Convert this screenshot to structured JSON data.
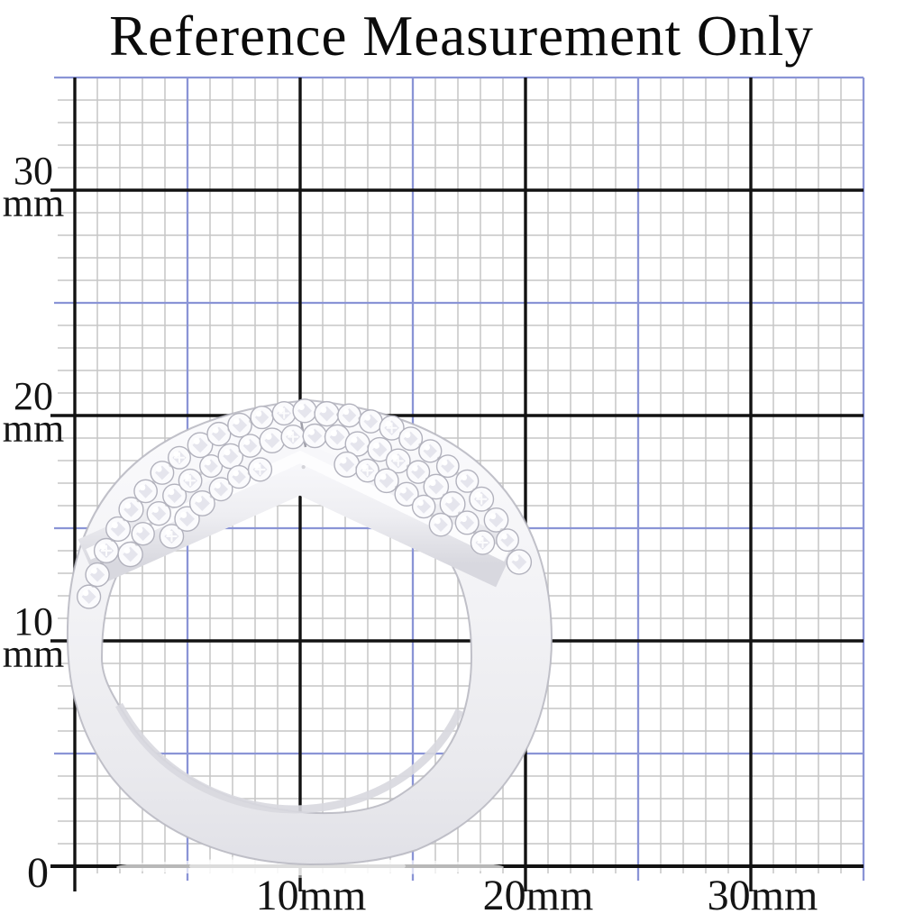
{
  "title": "Reference Measurement Only",
  "ruler": {
    "unit": "mm",
    "minor_step_mm": 1,
    "medium_step_mm": 5,
    "major_step_mm": 10,
    "visible_range_mm": {
      "x": 35,
      "y": 35
    },
    "x_axis_labels": [
      "10mm",
      "20mm",
      "30mm"
    ],
    "y_axis_labels": [
      {
        "number": "30",
        "unit": "mm"
      },
      {
        "number": "20",
        "unit": "mm"
      },
      {
        "number": "10",
        "unit": "mm"
      }
    ],
    "origin_label": "0"
  },
  "colors": {
    "background": "#ffffff",
    "grid_minor": "#c6c6c6",
    "grid_medium": "#8a94d6",
    "grid_major": "#121212",
    "text": "#111111",
    "metal_light": "#fafafc",
    "metal_shadow": "#d7d7de"
  },
  "subject": {
    "name": "silver pave chevron ring",
    "description": "Top view of a silver-tone ring set with rows of small clear pave stones in a crossover chevron design, spanning roughly 21 mm across the millimeter reference grid"
  }
}
